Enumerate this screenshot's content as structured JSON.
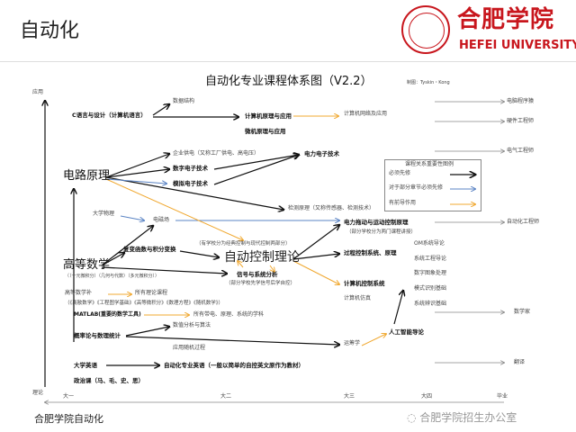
{
  "header": {
    "title": "自动化",
    "logo_cn": "合肥学院",
    "logo_en": "HEFEI UNIVERSITY"
  },
  "diagram": {
    "title": "自动化专业课程体系图（V2.2）",
    "author": "制图：Tyskin・Kong",
    "axis": {
      "top": "应用",
      "bottom": "理论",
      "years": [
        "大一",
        "大二",
        "大三",
        "大四",
        "毕业"
      ]
    },
    "nodes": {
      "c_lang": "C语言与设计（计算机语言）",
      "data_struct": "数据结构",
      "comp_principle": "计算机原理与应用",
      "micro": "微机原理与应用",
      "network": "计算机网络及应用",
      "power_supply": "企业供电（又称工厂供电、高电压）",
      "digital": "数字电子技术",
      "analog": "模拟电子技术",
      "power_elec": "电力电子技术",
      "circuit": "电路原理",
      "detection": "检测原理（又称传感器、检测技术）",
      "physics": "大学物理",
      "em_field": "电磁场",
      "drive": "电力拖动与运动控制原理",
      "drive_note": "（部分学校分为两门课程讲授）",
      "control_note": "（有学校分为经典控制与现代控制两部分）",
      "complex": "复变函数与积分变换",
      "auto_control": "自动控制理论",
      "math": "高等数学",
      "math_note": "（（一元微积分）（几何与代数）（多元微积分））",
      "signal": "信号与系统分析",
      "signal_note": "（部分学校先学信号后学自控）",
      "process": "过程控制系统、原理",
      "comp_control": "计算机控制系统",
      "simulation": "计算机仿真",
      "om": "OM系统导论",
      "sys_eng": "系统工程导论",
      "image": "数字图象处理",
      "pattern": "模式识别基础",
      "sys_id": "系统辨识基础",
      "math_sup": "高等数学补",
      "all_theory": "所有理论课程",
      "math_sup_list": "（《离散数学》《工程图学基础》《高等微积分》《数理方程》《随机数学》）",
      "matlab": "MATLAB(重要的数学工具)",
      "all_elec": "所有带电、原理、系统的学科",
      "numeric": "数值分析与算法",
      "prob": "概率论与数理统计",
      "stoch": "应用随机过程",
      "or": "运筹学",
      "ai": "人工智能导论",
      "english": "大学英语",
      "pro_english": "自动化专业英语（一般以简单的自控英文原作为教材）",
      "politics": "政治课（马、毛、史、思）"
    },
    "careers": [
      "电脑程序猿",
      "硬件工程师",
      "电气工程师",
      "自动化工程师",
      "数学家",
      "翻译"
    ],
    "legend": {
      "title": "课程关系重要性图例",
      "items": [
        {
          "label": "必须先修",
          "color": "#111111"
        },
        {
          "label": "对于部分章节必须先修",
          "color": "#5b84c4"
        },
        {
          "label": "有前导作用",
          "color": "#f0a830"
        }
      ]
    }
  },
  "footer": {
    "text": "合肥学院自动化",
    "watermark": "合肥学院招生办公室"
  }
}
